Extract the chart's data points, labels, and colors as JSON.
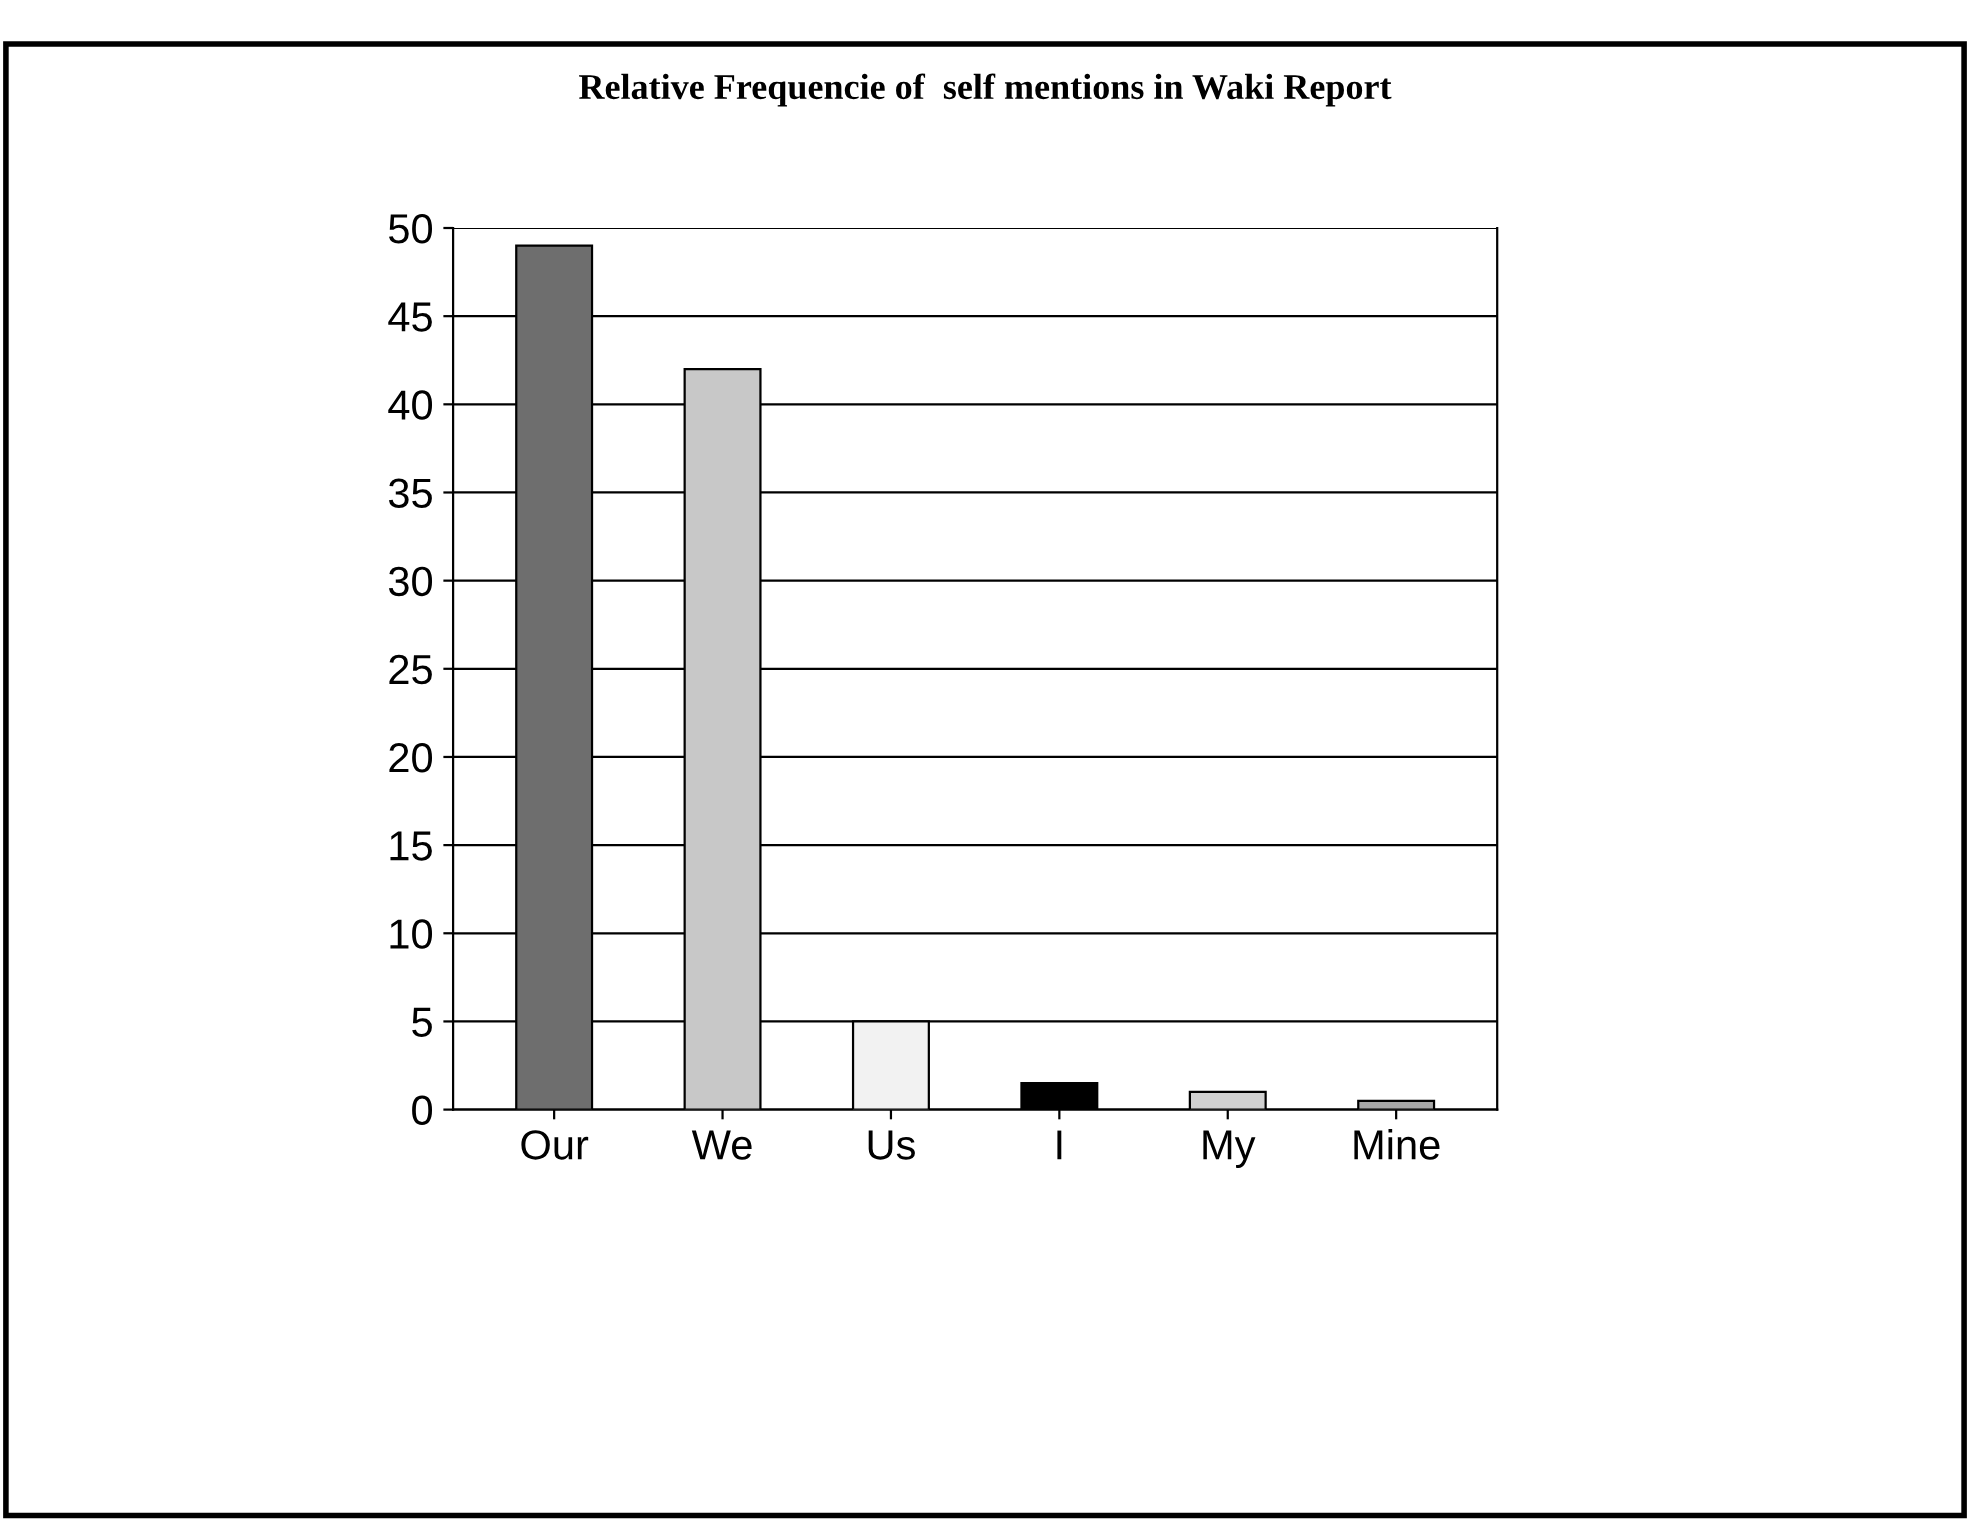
{
  "chart_data": {
    "type": "bar",
    "title": "Relative Frequencie of  self mentions in Waki Report",
    "categories": [
      "Our",
      "We",
      "Us",
      "I",
      "My",
      "Mine"
    ],
    "values": [
      49,
      42,
      5,
      1.5,
      1,
      0.5
    ],
    "colors": [
      "#6e6e6e",
      "#c8c8c8",
      "#f2f2f2",
      "#000000",
      "#d0d0d0",
      "#a8a8a8"
    ],
    "ylim": [
      0,
      50
    ],
    "yticks": [
      0,
      5,
      10,
      15,
      20,
      25,
      30,
      35,
      40,
      45,
      50
    ],
    "grid": "y"
  }
}
